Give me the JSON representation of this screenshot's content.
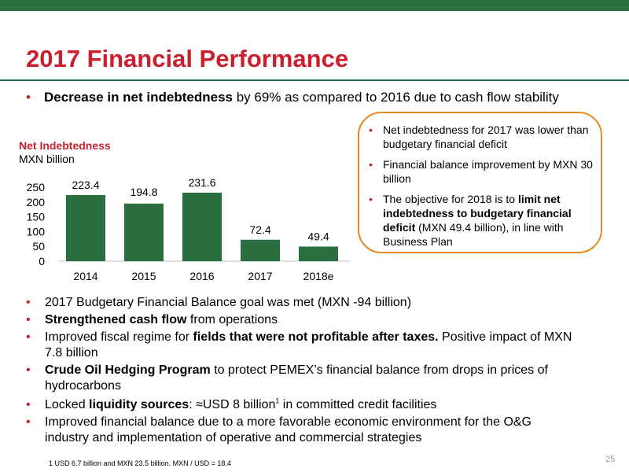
{
  "slide": {
    "title": "2017 Financial Performance",
    "page_number": "25",
    "footnote": "1   USD 6.7 billion and MXN 23.5 billion. MXN / USD = 18.4"
  },
  "main_bullet": {
    "bold": "Decrease in net indebtedness",
    "rest": " by 69% as compared to 2016 due to cash flow stability"
  },
  "chart_data": {
    "type": "bar",
    "title": "Net Indebtedness",
    "subtitle": "MXN billion",
    "categories": [
      "2014",
      "2015",
      "2016",
      "2017",
      "2018e"
    ],
    "values": [
      223.4,
      194.8,
      231.6,
      72.4,
      49.4
    ],
    "data_labels": [
      "223.4",
      "194.8",
      "231.6",
      "72.4",
      "49.4"
    ],
    "yticks": [
      "0",
      "50",
      "100",
      "150",
      "200",
      "250"
    ],
    "ylim": [
      0,
      250
    ],
    "bar_color": "#2b6e3f",
    "grid": false,
    "legend": false
  },
  "callout": {
    "bullets": [
      {
        "text": "Net indebtedness for 2017 was lower than budgetary financial deficit"
      },
      {
        "text": "Financial balance improvement by MXN 30 billion"
      },
      {
        "pre": "The objective for 2018 is to ",
        "bold": "limit net indebtedness to budgetary financial deficit",
        "post": " (MXN 49.4 billion), in line with Business Plan"
      }
    ]
  },
  "lower_bullets": [
    {
      "pre": "2017 Budgetary Financial Balance goal was met (MXN -94 billion)",
      "bold": "",
      "post": ""
    },
    {
      "pre": "",
      "bold": "Strengthened cash flow",
      "post": " from operations"
    },
    {
      "pre": "Improved fiscal regime for ",
      "bold": "fields that were not profitable after taxes.",
      "post": " Positive impact of MXN 7.8 billion"
    },
    {
      "pre": "",
      "bold": "Crude Oil Hedging Program",
      "post": " to protect PEMEX’s financial balance from drops in prices of hydrocarbons"
    },
    {
      "pre": "Locked ",
      "bold": "liquidity sources",
      "post": ": ≈USD 8 billion",
      "sup": "1",
      "post2": " in committed credit facilities"
    },
    {
      "pre": "Improved financial balance due to a more favorable economic environment for the O&G industry and implementation of operative and commercial strategies",
      "bold": "",
      "post": ""
    }
  ],
  "colors": {
    "accent_red": "#cc1f2e",
    "brand_green": "#2b6e3f",
    "callout_border": "#e8891f"
  }
}
